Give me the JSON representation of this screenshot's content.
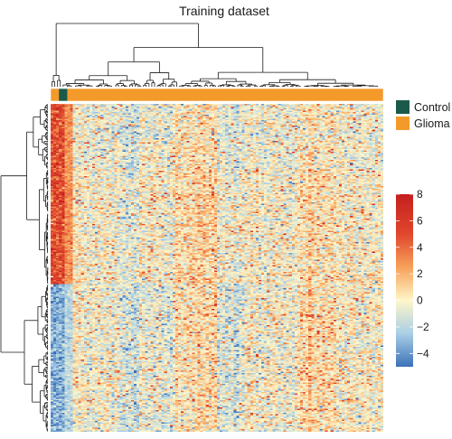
{
  "chart_data": {
    "type": "heatmap",
    "title": "Training dataset",
    "annotation_legend": [
      {
        "label": "Control",
        "color": "#1b5a4a"
      },
      {
        "label": "Glioma",
        "color": "#f39a2b"
      }
    ],
    "color_scale": {
      "range": [
        -5,
        8
      ],
      "stops": [
        {
          "value": -5,
          "color": "#3c71b8"
        },
        {
          "value": -2.5,
          "color": "#a9cfe6"
        },
        {
          "value": 0,
          "color": "#fff6c8"
        },
        {
          "value": 2.5,
          "color": "#f7a15a"
        },
        {
          "value": 5,
          "color": "#e0472d"
        },
        {
          "value": 8,
          "color": "#c51f1f"
        }
      ],
      "ticks": [
        8,
        6,
        4,
        2,
        0,
        -2,
        -4
      ],
      "tick_labels": [
        "8",
        "6",
        "4",
        "2",
        "0",
        "−2",
        "−4"
      ]
    },
    "samples": {
      "control_count": 3,
      "glioma_count": 117
    },
    "row_dendrogram": true,
    "column_dendrogram": true
  }
}
